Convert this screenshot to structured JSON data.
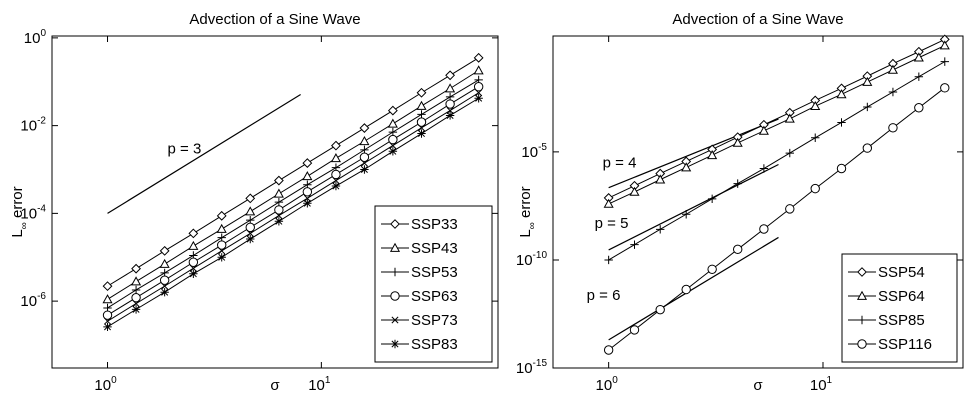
{
  "chart_data": [
    {
      "type": "line",
      "title": "Advection of a Sine Wave",
      "x_label": "σ",
      "y_label": "L_∞ error",
      "log_x": true,
      "log_y": true,
      "legend": "lower right",
      "xlim": [
        0.55,
        67
      ],
      "ylim": [
        3e-08,
        1.1
      ],
      "xticks": [
        {
          "value": 1,
          "label": "10^0"
        },
        {
          "value": 10,
          "label": "10^1"
        }
      ],
      "yticks": [
        {
          "value": 1,
          "label": "10^0"
        },
        {
          "value": 0.01,
          "label": "10^-2"
        },
        {
          "value": 0.0001,
          "label": "10^-4"
        },
        {
          "value": 1e-06,
          "label": "10^-6"
        }
      ],
      "x": [
        1,
        1.36,
        1.85,
        2.52,
        3.42,
        4.65,
        6.33,
        8.6,
        11.7,
        15.9,
        21.6,
        29.4,
        40,
        54.4
      ],
      "series": [
        {
          "name": "SSP33",
          "color": "#000000",
          "marker": "diamond",
          "values": [
            2.2e-06,
            5.5e-06,
            1.4e-05,
            3.5e-05,
            8.8e-05,
            0.00022,
            0.00056,
            0.0014,
            0.0035,
            0.0088,
            0.022,
            0.056,
            0.14,
            0.35
          ]
        },
        {
          "name": "SSP43",
          "color": "#000000",
          "marker": "triangle",
          "values": [
            1.1e-06,
            2.8e-06,
            7e-06,
            1.8e-05,
            4.4e-05,
            0.00011,
            0.00028,
            0.0007,
            0.0018,
            0.0044,
            0.011,
            0.028,
            0.07,
            0.18
          ]
        },
        {
          "name": "SSP53",
          "color": "#000000",
          "marker": "plus",
          "values": [
            7e-07,
            1.8e-06,
            4.4e-06,
            1.1e-05,
            2.8e-05,
            7e-05,
            0.00018,
            0.00045,
            0.0011,
            0.0028,
            0.0071,
            0.018,
            0.045,
            0.11
          ]
        },
        {
          "name": "SSP63",
          "color": "#000000",
          "marker": "circle",
          "values": [
            4.8e-07,
            1.2e-06,
            3e-06,
            7.7e-06,
            1.9e-05,
            4.8e-05,
            0.00012,
            0.00031,
            0.00077,
            0.0019,
            0.0048,
            0.012,
            0.031,
            0.077
          ]
        },
        {
          "name": "SSP73",
          "color": "#000000",
          "marker": "x",
          "values": [
            3.5e-07,
            8.8e-07,
            2.2e-06,
            5.6e-06,
            1.4e-05,
            3.5e-05,
            8.9e-05,
            0.00022,
            0.00056,
            0.0014,
            0.0035,
            0.0089,
            0.022,
            0.056
          ]
        },
        {
          "name": "SSP83",
          "color": "#000000",
          "marker": "asterisk",
          "values": [
            2.6e-07,
            6.5e-07,
            1.6e-06,
            4.2e-06,
            1e-05,
            2.6e-05,
            6.6e-05,
            0.00017,
            0.00042,
            0.001,
            0.0026,
            0.0066,
            0.017,
            0.042
          ]
        }
      ],
      "reference_lines": [
        {
          "label": "p = 3",
          "x": [
            1,
            8
          ],
          "y": [
            0.0001,
            0.0512
          ]
        }
      ]
    },
    {
      "type": "line",
      "title": "Advection of a Sine Wave",
      "x_label": "σ",
      "y_label": "L_∞ error",
      "log_x": true,
      "log_y": true,
      "legend": "lower right",
      "xlim": [
        0.55,
        45
      ],
      "ylim": [
        1e-15,
        2.3
      ],
      "xticks": [
        {
          "value": 1,
          "label": "10^0"
        },
        {
          "value": 10,
          "label": "10^1"
        }
      ],
      "yticks": [
        {
          "value": 1e-05,
          "label": "10^-5"
        },
        {
          "value": 1e-10,
          "label": "10^-10"
        },
        {
          "value": 1e-15,
          "label": "10^-15"
        }
      ],
      "x": [
        1,
        1.32,
        1.74,
        2.3,
        3.04,
        4.0,
        5.3,
        7.0,
        9.2,
        12.2,
        16.1,
        21.2,
        28,
        37
      ],
      "series": [
        {
          "name": "SSP54",
          "color": "#000000",
          "marker": "diamond",
          "values": [
            7.4e-08,
            2.7e-07,
            9.9e-07,
            3.6e-06,
            1.3e-05,
            4.8e-05,
            0.00018,
            0.00065,
            0.0024,
            0.0087,
            0.032,
            0.12,
            0.43,
            1.6
          ]
        },
        {
          "name": "SSP64",
          "color": "#000000",
          "marker": "triangle",
          "values": [
            3.9e-08,
            1.4e-07,
            5.2e-07,
            1.9e-06,
            7e-06,
            2.6e-05,
            9.4e-05,
            0.00034,
            0.0013,
            0.0046,
            0.017,
            0.062,
            0.23,
            0.83
          ]
        },
        {
          "name": "SSP85",
          "color": "#000000",
          "marker": "plus",
          "values": [
            1e-10,
            5.1e-10,
            2.6e-09,
            1.3e-08,
            6.7e-08,
            3.4e-07,
            1.7e-06,
            8.8e-06,
            4.5e-05,
            0.00023,
            0.0012,
            0.0059,
            0.03,
            0.15
          ]
        },
        {
          "name": "SSP116",
          "color": "#000000",
          "marker": "circle",
          "values": [
            6.8e-15,
            5.8e-14,
            5e-13,
            4.3e-12,
            3.7e-11,
            3.1e-10,
            2.7e-09,
            2.3e-08,
            2e-07,
            1.7e-06,
            1.5e-05,
            0.00013,
            0.0011,
            0.0092
          ]
        }
      ],
      "reference_lines": [
        {
          "label": "p = 4",
          "x": [
            1,
            6.2
          ],
          "y": [
            2.2e-07,
            0.00033
          ]
        },
        {
          "label": "p = 5",
          "x": [
            1,
            6.2
          ],
          "y": [
            2.9e-10,
            2.6e-06
          ]
        },
        {
          "label": "p = 6",
          "x": [
            1,
            6.2
          ],
          "y": [
            2e-14,
            1.1e-09
          ]
        }
      ]
    }
  ]
}
